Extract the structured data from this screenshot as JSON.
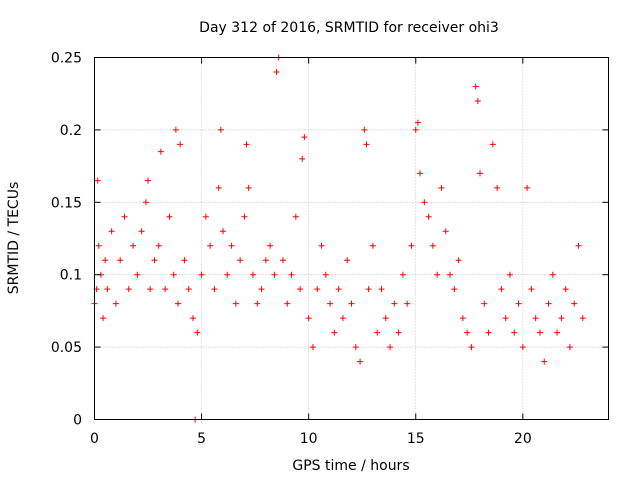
{
  "chart_data": {
    "type": "scatter",
    "title": "Day 312 of 2016, SRMTID for receiver ohi3",
    "xlabel": "GPS time / hours",
    "ylabel": "SRMTID / TECUs",
    "xlim": [
      0,
      24
    ],
    "ylim": [
      0,
      0.25
    ],
    "x_ticks": [
      "0",
      "5",
      "10",
      "15",
      "20"
    ],
    "y_ticks": [
      "0",
      "0.05",
      "0.1",
      "0.15",
      "0.2",
      "0.25"
    ],
    "grid": true,
    "marker": "plus",
    "color": "#ff0000",
    "series": [
      {
        "name": "SRMTID",
        "x": [
          0.0,
          0.1,
          0.15,
          0.2,
          0.3,
          0.4,
          0.5,
          0.6,
          0.8,
          1.0,
          1.2,
          1.4,
          1.6,
          1.8,
          2.0,
          2.2,
          2.4,
          2.5,
          2.6,
          2.8,
          3.0,
          3.1,
          3.3,
          3.5,
          3.7,
          3.8,
          3.9,
          4.0,
          4.2,
          4.4,
          4.6,
          4.7,
          4.8,
          5.0,
          5.2,
          5.4,
          5.6,
          5.8,
          5.9,
          6.0,
          6.2,
          6.4,
          6.6,
          6.8,
          7.0,
          7.1,
          7.2,
          7.4,
          7.6,
          7.8,
          8.0,
          8.2,
          8.4,
          8.5,
          8.6,
          8.8,
          9.0,
          9.2,
          9.4,
          9.6,
          9.7,
          9.8,
          10.0,
          10.2,
          10.4,
          10.6,
          10.8,
          11.0,
          11.2,
          11.4,
          11.6,
          11.8,
          12.0,
          12.2,
          12.4,
          12.6,
          12.7,
          12.8,
          13.0,
          13.2,
          13.4,
          13.6,
          13.8,
          14.0,
          14.2,
          14.4,
          14.6,
          14.8,
          15.0,
          15.1,
          15.2,
          15.4,
          15.6,
          15.8,
          16.0,
          16.2,
          16.4,
          16.6,
          16.8,
          17.0,
          17.2,
          17.4,
          17.6,
          17.8,
          17.9,
          18.0,
          18.2,
          18.4,
          18.6,
          18.8,
          19.0,
          19.2,
          19.4,
          19.6,
          19.8,
          20.0,
          20.2,
          20.4,
          20.6,
          20.8,
          21.0,
          21.2,
          21.4,
          21.6,
          21.8,
          22.0,
          22.2,
          22.4,
          22.6,
          22.8
        ],
        "y": [
          0.08,
          0.09,
          0.165,
          0.12,
          0.1,
          0.07,
          0.11,
          0.09,
          0.13,
          0.08,
          0.11,
          0.14,
          0.09,
          0.12,
          0.1,
          0.13,
          0.15,
          0.165,
          0.09,
          0.11,
          0.12,
          0.185,
          0.09,
          0.14,
          0.1,
          0.2,
          0.08,
          0.19,
          0.11,
          0.09,
          0.07,
          0.0,
          0.06,
          0.1,
          0.14,
          0.12,
          0.09,
          0.16,
          0.2,
          0.13,
          0.1,
          0.12,
          0.08,
          0.11,
          0.14,
          0.19,
          0.16,
          0.1,
          0.08,
          0.09,
          0.11,
          0.12,
          0.1,
          0.24,
          0.25,
          0.11,
          0.08,
          0.1,
          0.14,
          0.09,
          0.18,
          0.195,
          0.07,
          0.05,
          0.09,
          0.12,
          0.1,
          0.08,
          0.06,
          0.09,
          0.07,
          0.11,
          0.08,
          0.05,
          0.04,
          0.2,
          0.19,
          0.09,
          0.12,
          0.06,
          0.09,
          0.07,
          0.05,
          0.08,
          0.06,
          0.1,
          0.08,
          0.12,
          0.2,
          0.205,
          0.17,
          0.15,
          0.14,
          0.12,
          0.1,
          0.16,
          0.13,
          0.1,
          0.09,
          0.11,
          0.07,
          0.06,
          0.05,
          0.23,
          0.22,
          0.17,
          0.08,
          0.06,
          0.19,
          0.16,
          0.09,
          0.07,
          0.1,
          0.06,
          0.08,
          0.05,
          0.16,
          0.09,
          0.07,
          0.06,
          0.04,
          0.08,
          0.1,
          0.06,
          0.07,
          0.09,
          0.05,
          0.08,
          0.12,
          0.07
        ]
      }
    ]
  }
}
